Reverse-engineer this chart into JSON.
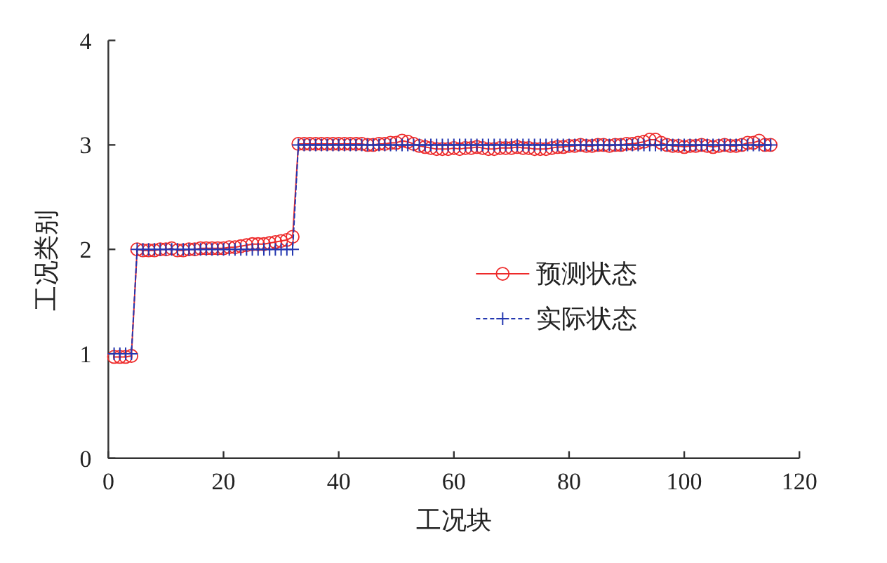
{
  "chart_data": {
    "type": "line",
    "xlabel": "工况块",
    "ylabel": "工况类别",
    "xlim": [
      0,
      120
    ],
    "ylim": [
      0,
      4
    ],
    "xticks": [
      0,
      20,
      40,
      60,
      80,
      100,
      120
    ],
    "yticks": [
      0,
      1,
      2,
      3,
      4
    ],
    "legend": "right",
    "x": [
      1,
      2,
      3,
      4,
      5,
      6,
      7,
      8,
      9,
      10,
      11,
      12,
      13,
      14,
      15,
      16,
      17,
      18,
      19,
      20,
      21,
      22,
      23,
      24,
      25,
      26,
      27,
      28,
      29,
      30,
      31,
      32,
      33,
      34,
      35,
      36,
      37,
      38,
      39,
      40,
      41,
      42,
      43,
      44,
      45,
      46,
      47,
      48,
      49,
      50,
      51,
      52,
      53,
      54,
      55,
      56,
      57,
      58,
      59,
      60,
      61,
      62,
      63,
      64,
      65,
      66,
      67,
      68,
      69,
      70,
      71,
      72,
      73,
      74,
      75,
      76,
      77,
      78,
      79,
      80,
      81,
      82,
      83,
      84,
      85,
      86,
      87,
      88,
      89,
      90,
      91,
      92,
      93,
      94,
      95,
      96,
      97,
      98,
      99,
      100,
      101,
      102,
      103,
      104,
      105,
      106,
      107,
      108,
      109,
      110,
      111,
      112,
      113,
      114,
      115
    ],
    "series": [
      {
        "name": "预测状态",
        "color": "#ee2a2a",
        "marker": "circle",
        "line_style": "solid",
        "values": [
          0.97,
          0.97,
          0.97,
          0.98,
          2.0,
          1.99,
          1.99,
          1.99,
          2.0,
          2.0,
          2.01,
          1.99,
          1.99,
          2.0,
          2.0,
          2.01,
          2.01,
          2.01,
          2.01,
          2.01,
          2.02,
          2.02,
          2.03,
          2.04,
          2.05,
          2.05,
          2.05,
          2.06,
          2.07,
          2.08,
          2.09,
          2.12,
          3.01,
          3.01,
          3.01,
          3.01,
          3.01,
          3.01,
          3.01,
          3.01,
          3.01,
          3.01,
          3.01,
          3.01,
          3.0,
          3.0,
          3.01,
          3.01,
          3.02,
          3.02,
          3.04,
          3.03,
          3.01,
          2.99,
          2.98,
          2.97,
          2.96,
          2.96,
          2.96,
          2.97,
          2.96,
          2.97,
          2.97,
          2.98,
          2.97,
          2.96,
          2.96,
          2.97,
          2.97,
          2.97,
          2.98,
          2.97,
          2.97,
          2.96,
          2.96,
          2.96,
          2.97,
          2.98,
          2.98,
          2.99,
          2.99,
          3.0,
          2.99,
          2.99,
          3.0,
          3.0,
          2.99,
          3.0,
          3.0,
          3.01,
          3.01,
          3.02,
          3.03,
          3.05,
          3.05,
          3.02,
          3.0,
          2.99,
          2.99,
          2.98,
          2.99,
          2.99,
          3.0,
          2.99,
          2.98,
          2.99,
          3.0,
          2.99,
          2.99,
          3.0,
          3.02,
          3.02,
          3.04,
          3.0,
          3.0
        ]
      },
      {
        "name": "实际状态",
        "color": "#2438b0",
        "marker": "cross",
        "line_style": "dashed",
        "values": [
          1,
          1,
          1,
          1,
          2,
          2,
          2,
          2,
          2,
          2,
          2,
          2,
          2,
          2,
          2,
          2,
          2,
          2,
          2,
          2,
          2,
          2,
          2,
          2,
          2,
          2,
          2,
          2,
          2,
          2,
          2,
          2,
          3,
          3,
          3,
          3,
          3,
          3,
          3,
          3,
          3,
          3,
          3,
          3,
          3,
          3,
          3,
          3,
          3,
          3,
          3,
          3,
          3,
          3,
          3,
          3,
          3,
          3,
          3,
          3,
          3,
          3,
          3,
          3,
          3,
          3,
          3,
          3,
          3,
          3,
          3,
          3,
          3,
          3,
          3,
          3,
          3,
          3,
          3,
          3,
          3,
          3,
          3,
          3,
          3,
          3,
          3,
          3,
          3,
          3,
          3,
          3,
          3,
          3,
          3,
          3,
          3,
          3,
          3,
          3,
          3,
          3,
          3,
          3,
          3,
          3,
          3,
          3,
          3,
          3,
          3,
          3,
          3,
          3,
          3
        ]
      }
    ]
  }
}
